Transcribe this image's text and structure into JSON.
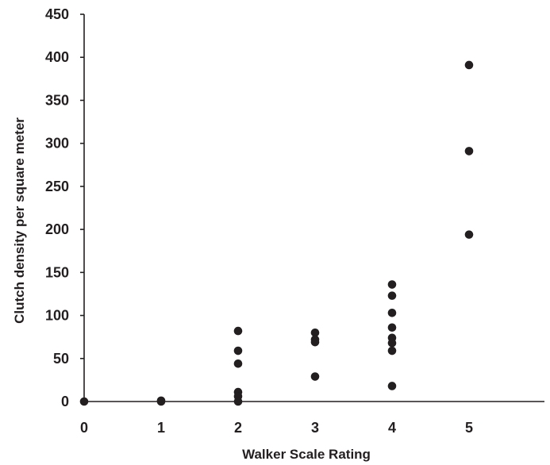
{
  "chart_data": {
    "type": "scatter",
    "title": "",
    "xlabel": "Walker Scale Rating",
    "ylabel": "Clutch density per square meter",
    "xlim": [
      0,
      6
    ],
    "ylim": [
      0,
      450
    ],
    "x_ticks": [
      0,
      1,
      2,
      3,
      4,
      5
    ],
    "y_ticks": [
      0,
      50,
      100,
      150,
      200,
      250,
      300,
      350,
      400,
      450
    ],
    "grid": false,
    "legend": "none",
    "marker_color": "#231f20",
    "series": [
      {
        "points": [
          {
            "x": 0,
            "y": 0
          },
          {
            "x": 1,
            "y": 1
          },
          {
            "x": 1,
            "y": 0
          },
          {
            "x": 2,
            "y": 82
          },
          {
            "x": 2,
            "y": 59
          },
          {
            "x": 2,
            "y": 44
          },
          {
            "x": 2,
            "y": 11
          },
          {
            "x": 2,
            "y": 6
          },
          {
            "x": 2,
            "y": 0
          },
          {
            "x": 3,
            "y": 80
          },
          {
            "x": 3,
            "y": 72
          },
          {
            "x": 3,
            "y": 69
          },
          {
            "x": 3,
            "y": 29
          },
          {
            "x": 4,
            "y": 136
          },
          {
            "x": 4,
            "y": 123
          },
          {
            "x": 4,
            "y": 103
          },
          {
            "x": 4,
            "y": 86
          },
          {
            "x": 4,
            "y": 74
          },
          {
            "x": 4,
            "y": 68
          },
          {
            "x": 4,
            "y": 59
          },
          {
            "x": 4,
            "y": 18
          },
          {
            "x": 5,
            "y": 391
          },
          {
            "x": 5,
            "y": 291
          },
          {
            "x": 5,
            "y": 194
          }
        ]
      }
    ]
  }
}
